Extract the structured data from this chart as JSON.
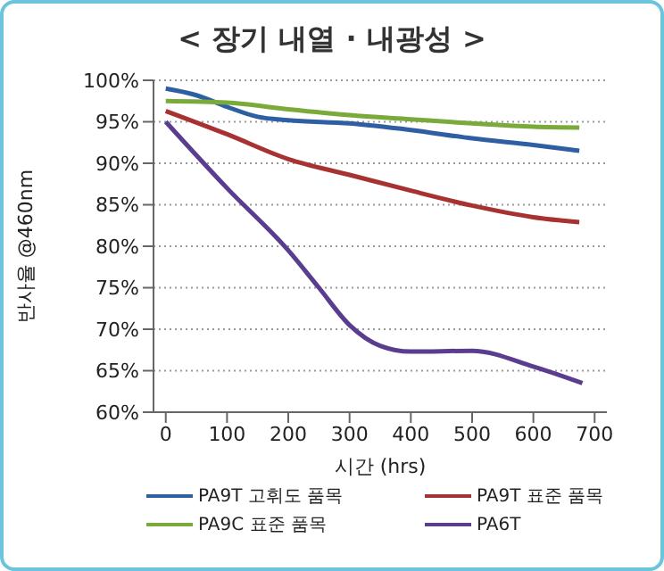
{
  "chart_data": {
    "type": "line",
    "title": "< 장기 내열 · 내광성 >",
    "xlabel": "시간 (hrs)",
    "ylabel": "반사율  @460nm",
    "xlim": [
      -20,
      720
    ],
    "xticks": [
      0,
      100,
      200,
      300,
      400,
      500,
      600,
      700
    ],
    "ylim": [
      60,
      100
    ],
    "yticks": [
      {
        "value": 60,
        "label": "60%"
      },
      {
        "value": 65,
        "label": "65%"
      },
      {
        "value": 70,
        "label": "70%"
      },
      {
        "value": 75,
        "label": "75%"
      },
      {
        "value": 80,
        "label": "80%"
      },
      {
        "value": 85,
        "label": "85%"
      },
      {
        "value": 90,
        "label": "90%"
      },
      {
        "value": 95,
        "label": "95%"
      },
      {
        "value": 100,
        "label": "100%"
      }
    ],
    "grid": "y",
    "legend": "bottom",
    "marker": "none",
    "line_style": "solid",
    "series": [
      {
        "name": "PA9T 고휘도 품목",
        "color": "#2e5fa3",
        "x": [
          0,
          50,
          100,
          150,
          200,
          300,
          400,
          500,
          600,
          675
        ],
        "values": [
          99,
          98.2,
          96.8,
          95.6,
          95.2,
          94.8,
          94,
          93,
          92.2,
          91.5
        ]
      },
      {
        "name": "PA9T 표준 품목",
        "color": "#a83232",
        "x": [
          0,
          100,
          200,
          300,
          400,
          500,
          600,
          675
        ],
        "values": [
          96.3,
          93.5,
          90.5,
          88.6,
          86.7,
          84.9,
          83.5,
          82.9
        ]
      },
      {
        "name": "PA9C 표준 품목",
        "color": "#7aaa3a",
        "x": [
          0,
          100,
          200,
          300,
          400,
          500,
          600,
          675
        ],
        "values": [
          97.5,
          97.3,
          96.5,
          95.8,
          95.3,
          94.8,
          94.4,
          94.3
        ]
      },
      {
        "name": "PA6T",
        "color": "#5b3d8f",
        "x": [
          0,
          100,
          200,
          250,
          300,
          350,
          400,
          500,
          600,
          680
        ],
        "values": [
          95,
          87,
          79.5,
          75,
          70.5,
          68,
          67.3,
          67.4,
          65.5,
          63.5
        ]
      }
    ]
  }
}
